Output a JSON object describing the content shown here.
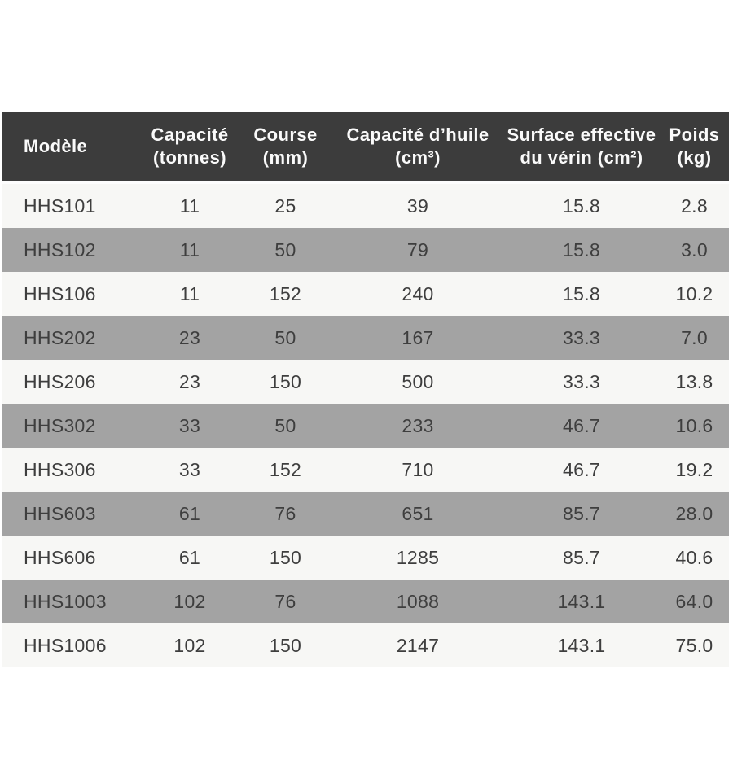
{
  "chart_data": {
    "type": "table",
    "title": "",
    "columns": [
      {
        "label": "Modèle"
      },
      {
        "label": "Capacité\n(tonnes)"
      },
      {
        "label": "Course\n(mm)"
      },
      {
        "label": "Capacité d’huile\n(cm³)"
      },
      {
        "label": "Surface effective\ndu vérin (cm²)"
      },
      {
        "label": "Poids\n(kg)"
      }
    ],
    "rows": [
      [
        "HHS101",
        "11",
        "25",
        "39",
        "15.8",
        "2.8"
      ],
      [
        "HHS102",
        "11",
        "50",
        "79",
        "15.8",
        "3.0"
      ],
      [
        "HHS106",
        "11",
        "152",
        "240",
        "15.8",
        "10.2"
      ],
      [
        "HHS202",
        "23",
        "50",
        "167",
        "33.3",
        "7.0"
      ],
      [
        "HHS206",
        "23",
        "150",
        "500",
        "33.3",
        "13.8"
      ],
      [
        "HHS302",
        "33",
        "50",
        "233",
        "46.7",
        "10.6"
      ],
      [
        "HHS306",
        "33",
        "152",
        "710",
        "46.7",
        "19.2"
      ],
      [
        "HHS603",
        "61",
        "76",
        "651",
        "85.7",
        "28.0"
      ],
      [
        "HHS606",
        "61",
        "150",
        "1285",
        "85.7",
        "40.6"
      ],
      [
        "HHS1003",
        "102",
        "76",
        "1088",
        "143.1",
        "64.0"
      ],
      [
        "HHS1006",
        "102",
        "150",
        "2147",
        "143.1",
        "75.0"
      ]
    ],
    "layout": {
      "grid": false,
      "striped": true,
      "header_position": "top"
    },
    "colors": {
      "header_bg": "#3c3c3c",
      "header_text": "#fafafa",
      "row_light_bg": "#f7f7f5",
      "row_dark_bg": "#a3a3a3",
      "cell_text": "#3e3e3e",
      "page_bg": "#ffffff"
    }
  }
}
